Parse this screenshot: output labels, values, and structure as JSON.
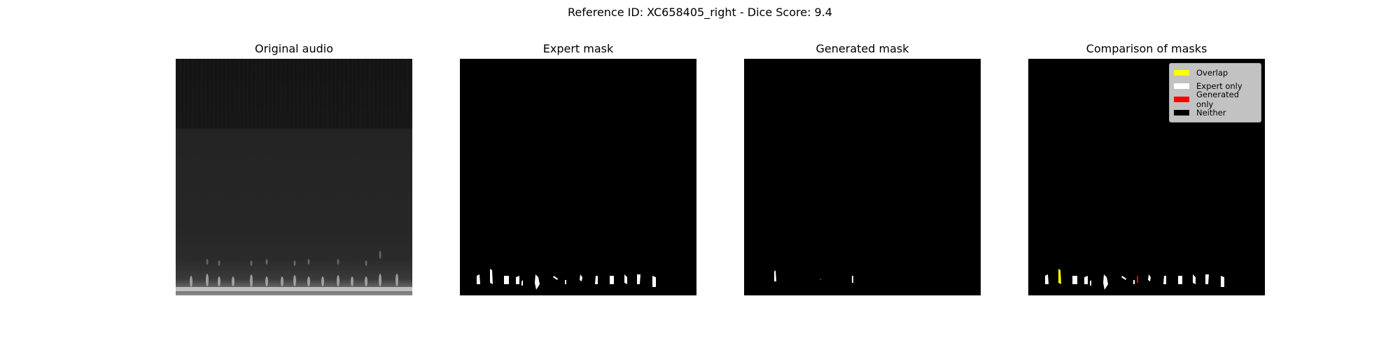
{
  "figure": {
    "suptitle": "Reference ID: XC658405_right - Dice Score: 9.4"
  },
  "panels": {
    "original": {
      "title": "Original audio"
    },
    "expert": {
      "title": "Expert mask"
    },
    "generated": {
      "title": "Generated mask"
    },
    "comparison": {
      "title": "Comparison of masks"
    }
  },
  "legend": {
    "items": [
      {
        "label": "Overlap",
        "color": "#ffff00"
      },
      {
        "label": "Expert only",
        "color": "#ffffff"
      },
      {
        "label": "Generated only",
        "color": "#ff0000"
      },
      {
        "label": "Neither",
        "color": "#000000"
      }
    ]
  }
}
